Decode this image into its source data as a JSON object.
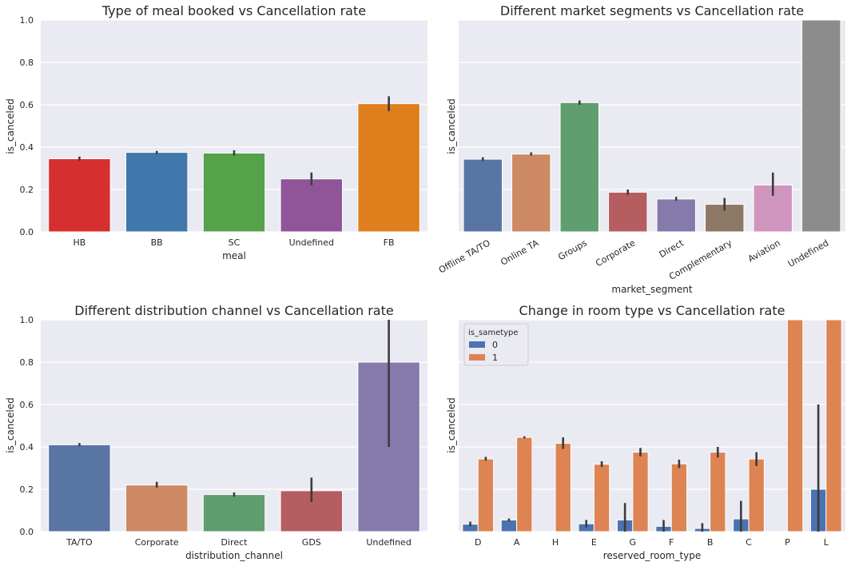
{
  "chart_data": [
    {
      "type": "bar",
      "title": "Type of meal booked vs Cancellation rate",
      "xlabel": "meal",
      "ylabel": "is_canceled",
      "ylim": [
        0,
        1.0
      ],
      "yticks": [
        "0.0",
        "0.2",
        "0.4",
        "0.6",
        "0.8",
        "1.0"
      ],
      "grid": true,
      "categories": [
        "HB",
        "BB",
        "SC",
        "Undefined",
        "FB"
      ],
      "values": [
        0.345,
        0.375,
        0.372,
        0.25,
        0.605
      ],
      "ci_low": [
        0.335,
        0.368,
        0.36,
        0.22,
        0.57
      ],
      "ci_high": [
        0.355,
        0.382,
        0.385,
        0.28,
        0.64
      ],
      "colors": [
        "#d62f2f",
        "#4178ac",
        "#55a24b",
        "#8f5598",
        "#e07e1d"
      ]
    },
    {
      "type": "bar",
      "title": "Different market segments vs Cancellation rate",
      "xlabel": "market_segment",
      "ylabel": "is_canceled",
      "ylim": [
        0,
        1.0
      ],
      "grid": true,
      "categories": [
        "Offline TA/TO",
        "Online TA",
        "Groups",
        "Corporate",
        "Direct",
        "Complementary",
        "Aviation",
        "Undefined"
      ],
      "values": [
        0.343,
        0.367,
        0.61,
        0.187,
        0.155,
        0.13,
        0.221,
        1.0
      ],
      "ci_low": [
        0.335,
        0.36,
        0.6,
        0.175,
        0.147,
        0.1,
        0.17,
        1.0
      ],
      "ci_high": [
        0.352,
        0.375,
        0.62,
        0.2,
        0.165,
        0.16,
        0.28,
        1.0
      ],
      "colors": [
        "#5875a4",
        "#cc8963",
        "#5f9e6e",
        "#b55d60",
        "#857aab",
        "#8d7866",
        "#d095bf",
        "#8c8c8c"
      ]
    },
    {
      "type": "bar",
      "title": "Different distribution channel vs Cancellation rate",
      "xlabel": "distribution_channel",
      "ylabel": "is_canceled",
      "ylim": [
        0,
        1.0
      ],
      "yticks": [
        "0.0",
        "0.2",
        "0.4",
        "0.6",
        "0.8",
        "1.0"
      ],
      "grid": true,
      "categories": [
        "TA/TO",
        "Corporate",
        "Direct",
        "GDS",
        "Undefined"
      ],
      "values": [
        0.41,
        0.22,
        0.175,
        0.193,
        0.8
      ],
      "ci_low": [
        0.403,
        0.208,
        0.165,
        0.14,
        0.4
      ],
      "ci_high": [
        0.418,
        0.235,
        0.185,
        0.255,
        1.0
      ],
      "colors": [
        "#5875a4",
        "#cc8963",
        "#5f9e6e",
        "#b55d60",
        "#857aab"
      ]
    },
    {
      "type": "bar",
      "title": "Change in room type vs Cancellation rate",
      "xlabel": "reserved_room_type",
      "ylabel": "is_canceled",
      "ylim": [
        0,
        1.0
      ],
      "grid": true,
      "legend": {
        "title": "is_sametype",
        "placement": "top-left"
      },
      "categories": [
        "D",
        "A",
        "H",
        "E",
        "G",
        "F",
        "B",
        "C",
        "P",
        "L"
      ],
      "series": [
        {
          "name": "0",
          "color": "#4c72b0",
          "values": [
            0.035,
            0.055,
            0.0,
            0.037,
            0.055,
            0.025,
            0.015,
            0.06,
            0.0,
            0.2
          ],
          "ci_low": [
            0.025,
            0.048,
            0.0,
            0.02,
            0.0,
            0.0,
            0.0,
            0.0,
            0.0,
            0.0
          ],
          "ci_high": [
            0.047,
            0.062,
            0.0,
            0.055,
            0.135,
            0.055,
            0.04,
            0.145,
            0.0,
            0.6
          ]
        },
        {
          "name": "1",
          "color": "#dd8452",
          "values": [
            0.343,
            0.445,
            0.417,
            0.318,
            0.375,
            0.32,
            0.375,
            0.343,
            1.0,
            1.0
          ],
          "ci_low": [
            0.335,
            0.44,
            0.39,
            0.305,
            0.355,
            0.3,
            0.35,
            0.31,
            1.0,
            1.0
          ],
          "ci_high": [
            0.353,
            0.45,
            0.445,
            0.332,
            0.395,
            0.34,
            0.4,
            0.375,
            1.0,
            1.0
          ]
        }
      ]
    }
  ]
}
